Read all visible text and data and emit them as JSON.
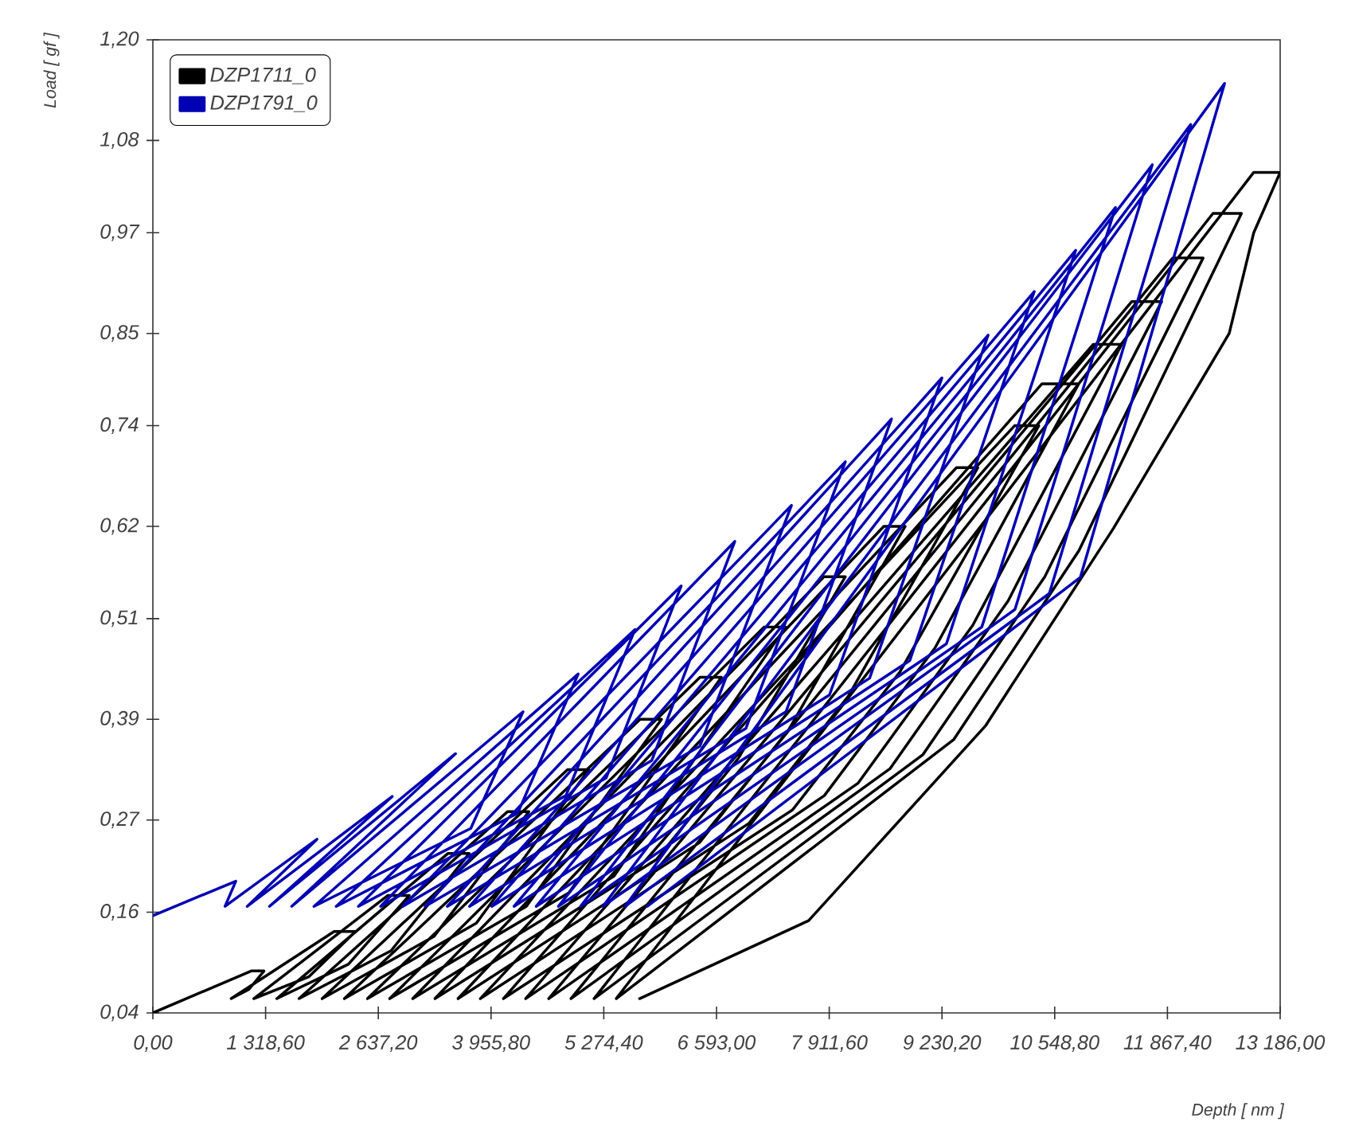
{
  "chart_data": {
    "type": "line",
    "xlabel": "Depth [ nm ]",
    "ylabel": "Load [ gf ]",
    "legend": "top left",
    "marker": "none",
    "grid": false,
    "xlim": [
      0,
      13186
    ],
    "ylim": [
      0.04,
      1.2
    ],
    "xticks": [
      {
        "value": 0,
        "label": "0,00"
      },
      {
        "value": 1318.6,
        "label": "1 318,60"
      },
      {
        "value": 2637.2,
        "label": "2 637,20"
      },
      {
        "value": 3955.8,
        "label": "3 955,80"
      },
      {
        "value": 5274.4,
        "label": "5 274,40"
      },
      {
        "value": 6593,
        "label": "6 593,00"
      },
      {
        "value": 7911.6,
        "label": "7 911,60"
      },
      {
        "value": 9230.2,
        "label": "9 230,20"
      },
      {
        "value": 10548.8,
        "label": "10 548,80"
      },
      {
        "value": 11867.4,
        "label": "11 867,40"
      },
      {
        "value": 13186,
        "label": "13 186,00"
      }
    ],
    "yticks": [
      {
        "value": 0.04,
        "label": "0,04"
      },
      {
        "value": 0.16,
        "label": "0,16"
      },
      {
        "value": 0.27,
        "label": "0,27"
      },
      {
        "value": 0.39,
        "label": "0,39"
      },
      {
        "value": 0.51,
        "label": "0,51"
      },
      {
        "value": 0.62,
        "label": "0,62"
      },
      {
        "value": 0.74,
        "label": "0,74"
      },
      {
        "value": 0.85,
        "label": "0,85"
      },
      {
        "value": 0.97,
        "label": "0,97"
      },
      {
        "value": 1.08,
        "label": "1,08"
      },
      {
        "value": 1.2,
        "label": "1,20"
      }
    ],
    "series": [
      {
        "name": "DZP1711_0",
        "color": "#000000",
        "x": [
          0,
          1150,
          1300,
          1123,
          916,
          2120,
          2370,
          1823,
          1180,
          2750,
          3000,
          2287,
          1450,
          3450,
          3700,
          2785,
          1710,
          4150,
          4400,
          3287,
          1980,
          4850,
          5100,
          3784,
          2240,
          5700,
          5950,
          4368,
          2510,
          6400,
          6650,
          4865,
          2770,
          7150,
          7400,
          5394,
          3040,
          7850,
          8100,
          6852,
          5892,
          3300,
          8550,
          8800,
          7440,
          6394,
          3570,
          9400,
          9650,
          8137,
          6973,
          3830,
          10080,
          10363,
          8735,
          7482,
          4100,
          10400,
          10830,
          9148,
          7854,
          4360,
          11000,
          11333,
          9590,
          8250,
          4630,
          11450,
          11800,
          10003,
          8621,
          4890,
          11930,
          12285,
          10433,
          9008,
          5160,
          12400,
          12733,
          10832,
          9369,
          5420,
          12877,
          13186,
          12877,
          12590,
          11238,
          9738,
          7670,
          5693
        ],
        "values": [
          0.04,
          0.09,
          0.09,
          0.068,
          0.057,
          0.137,
          0.137,
          0.083,
          0.057,
          0.18,
          0.18,
          0.098,
          0.057,
          0.23,
          0.23,
          0.114,
          0.057,
          0.28,
          0.28,
          0.131,
          0.057,
          0.33,
          0.33,
          0.147,
          0.057,
          0.39,
          0.39,
          0.167,
          0.057,
          0.44,
          0.44,
          0.183,
          0.057,
          0.5,
          0.5,
          0.203,
          0.057,
          0.56,
          0.56,
          0.344,
          0.223,
          0.057,
          0.62,
          0.62,
          0.378,
          0.243,
          0.057,
          0.69,
          0.69,
          0.418,
          0.266,
          0.057,
          0.74,
          0.74,
          0.446,
          0.282,
          0.057,
          0.79,
          0.79,
          0.475,
          0.299,
          0.057,
          0.837,
          0.837,
          0.502,
          0.314,
          0.057,
          0.888,
          0.888,
          0.531,
          0.331,
          0.057,
          0.94,
          0.94,
          0.56,
          0.348,
          0.057,
          0.993,
          0.993,
          0.591,
          0.366,
          0.057,
          1.042,
          1.042,
          0.97,
          0.85,
          0.618,
          0.382,
          0.15,
          0.057
        ]
      },
      {
        "name": "DZP1791_0",
        "color": "#0000b4",
        "x": [
          0,
          970,
          844,
          1920,
          1104,
          2800,
          1364,
          3540,
          1624,
          4330,
          3719,
          1884,
          4975,
          4267,
          2144,
          5640,
          4831,
          2404,
          6180,
          5301,
          2664,
          6807,
          5836,
          2924,
          7470,
          6399,
          3184,
          8100,
          6936,
          3444,
          8640,
          7406,
          3704,
          9230,
          7914,
          3964,
          9770,
          8384,
          4224,
          10310,
          8854,
          4484,
          10794,
          9282,
          4744,
          11260,
          9696,
          5004,
          11690,
          10084,
          5264,
          12140,
          10486,
          5524,
          12536,
          10848,
          5783
        ],
        "values": [
          0.156,
          0.197,
          0.167,
          0.247,
          0.167,
          0.298,
          0.167,
          0.349,
          0.167,
          0.399,
          0.26,
          0.167,
          0.444,
          0.278,
          0.167,
          0.497,
          0.299,
          0.167,
          0.549,
          0.32,
          0.167,
          0.602,
          0.341,
          0.167,
          0.645,
          0.358,
          0.167,
          0.697,
          0.379,
          0.167,
          0.748,
          0.399,
          0.167,
          0.797,
          0.419,
          0.167,
          0.848,
          0.439,
          0.167,
          0.9,
          0.46,
          0.167,
          0.949,
          0.48,
          0.167,
          1.0,
          0.5,
          0.167,
          1.051,
          0.521,
          0.167,
          1.099,
          0.54,
          0.167,
          1.148,
          0.559,
          0.167
        ]
      }
    ]
  }
}
